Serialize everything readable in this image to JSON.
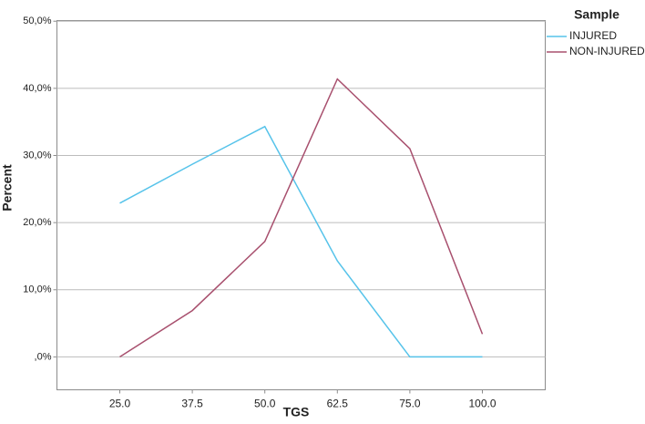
{
  "chart_data": {
    "type": "line",
    "x_label": "TGS",
    "y_label": "Percent",
    "legend_title": "Sample",
    "categories": [
      "25.0",
      "37.5",
      "50.0",
      "62.5",
      "75.0",
      "100.0"
    ],
    "series": [
      {
        "name": "INJURED",
        "color": "#56c3ea",
        "values": [
          22.9,
          28.7,
          34.3,
          14.3,
          0,
          0
        ]
      },
      {
        "name": "NON-INJURED",
        "color": "#a8506e",
        "values": [
          0,
          6.9,
          17.2,
          41.4,
          31.0,
          3.4
        ]
      }
    ],
    "ylim": [
      -4.9,
      50.1
    ],
    "yticks": [
      {
        "value": 0,
        "label": ",0%"
      },
      {
        "value": 10,
        "label": "10,0%"
      },
      {
        "value": 20,
        "label": "20,0%"
      },
      {
        "value": 30,
        "label": "30,0%"
      },
      {
        "value": 40,
        "label": "40,0%"
      },
      {
        "value": 50,
        "label": "50,0%"
      }
    ],
    "grid": true
  }
}
